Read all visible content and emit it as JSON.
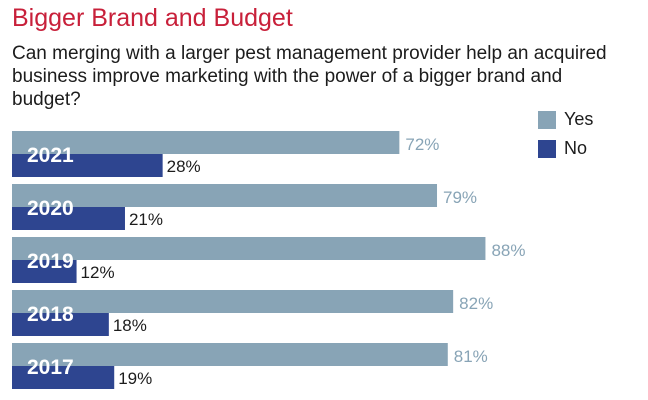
{
  "chart_data": {
    "type": "bar",
    "orientation": "horizontal",
    "title": "Bigger Brand and Budget",
    "subtitle": "Can merging with a larger pest management provider help an acquired business improve marketing with the power of a bigger brand and budget?",
    "categories": [
      "2021",
      "2020",
      "2019",
      "2018",
      "2017"
    ],
    "series": [
      {
        "name": "Yes",
        "values": [
          72,
          79,
          88,
          82,
          81
        ],
        "labels": [
          "72%",
          "79%",
          "88%",
          "82%",
          "81%"
        ],
        "color": "#88a4b6"
      },
      {
        "name": "No",
        "values": [
          28,
          21,
          12,
          18,
          19
        ],
        "labels": [
          "28%",
          "21%",
          "12%",
          "18%",
          "19%"
        ],
        "color": "#2e4590"
      }
    ],
    "xlim": [
      0,
      100
    ],
    "grid": false,
    "legend": "top-right"
  }
}
